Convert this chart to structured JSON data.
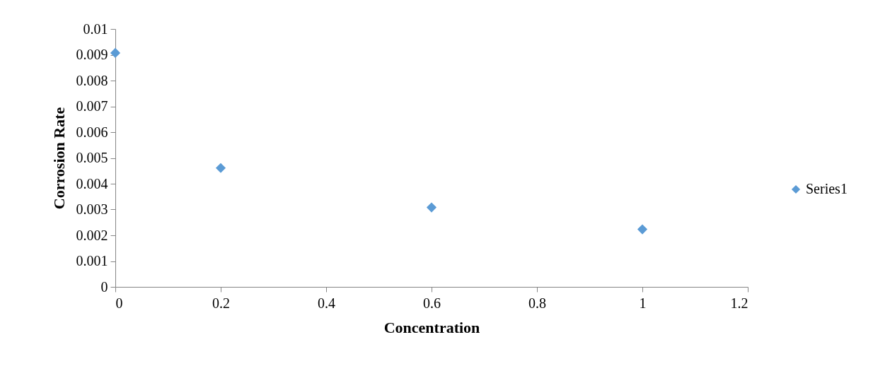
{
  "chart_data": {
    "type": "scatter",
    "xlabel": "Concentration",
    "ylabel": "Corrosion Rate",
    "x": [
      0,
      0.2,
      0.6,
      1.0
    ],
    "series": [
      {
        "name": "Series1",
        "color": "#5b9bd5",
        "values": [
          0.00907,
          0.00461,
          0.00308,
          0.00223
        ]
      }
    ],
    "xlim": [
      0,
      1.2
    ],
    "xticks": [
      0,
      0.2,
      0.4,
      0.6,
      0.8,
      1,
      1.2
    ],
    "ylim": [
      0,
      0.01
    ],
    "yticks": [
      0,
      0.001,
      0.002,
      0.003,
      0.004,
      0.005,
      0.006,
      0.007,
      0.008,
      0.009,
      0.01
    ],
    "grid": false,
    "legend": "right",
    "marker": "diamond"
  }
}
